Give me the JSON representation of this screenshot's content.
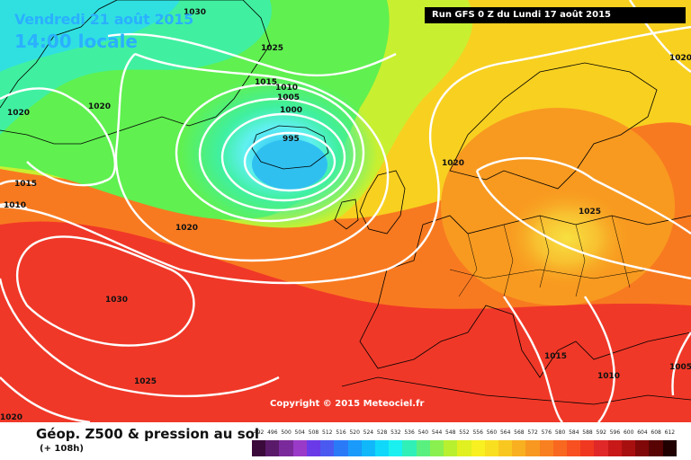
{
  "header": {
    "date": "Vendredi 21 août 2015",
    "time": "14:00 locale",
    "run": "Run GFS 0 Z du Lundi 17 août 2015"
  },
  "copyright": "Copyright © 2015 Meteociel.fr",
  "footer": {
    "title": "Géop. Z500 & pression au sol",
    "subtitle": "(+ 108h)"
  },
  "legend": {
    "values": [
      "492",
      "496",
      "500",
      "504",
      "508",
      "512",
      "516",
      "520",
      "524",
      "528",
      "532",
      "536",
      "540",
      "544",
      "548",
      "552",
      "556",
      "560",
      "564",
      "568",
      "572",
      "576",
      "580",
      "584",
      "588",
      "592",
      "596",
      "600",
      "604",
      "608",
      "612"
    ],
    "colors": [
      "#3a0a3a",
      "#5a1a6a",
      "#7a2a9a",
      "#9a3ac8",
      "#6a3ae8",
      "#4a5af0",
      "#2a7af8",
      "#1a9afa",
      "#10b8fa",
      "#10d8fa",
      "#1af0f0",
      "#30f0b8",
      "#5af080",
      "#8af050",
      "#b8f030",
      "#e0f020",
      "#f8f020",
      "#f8e020",
      "#f8c820",
      "#f8b020",
      "#f89820",
      "#f88020",
      "#f86820",
      "#f85020",
      "#f03820",
      "#e02828",
      "#c81818",
      "#a81010",
      "#800808",
      "#580404",
      "#200000"
    ]
  },
  "isobars": [
    {
      "label": "1030"
    },
    {
      "label": "1025"
    },
    {
      "label": "1015"
    },
    {
      "label": "1010"
    },
    {
      "label": "1005"
    },
    {
      "label": "1000"
    },
    {
      "label": "995"
    },
    {
      "label": "1020"
    },
    {
      "label": "1020"
    },
    {
      "label": "1020"
    },
    {
      "label": "1015"
    },
    {
      "label": "1010"
    },
    {
      "label": "1020"
    },
    {
      "label": "1020"
    },
    {
      "label": "1025"
    },
    {
      "label": "1030"
    },
    {
      "label": "1025"
    },
    {
      "label": "1020"
    },
    {
      "label": "1015"
    },
    {
      "label": "1010"
    },
    {
      "label": "1005"
    },
    {
      "label": "1020"
    }
  ]
}
